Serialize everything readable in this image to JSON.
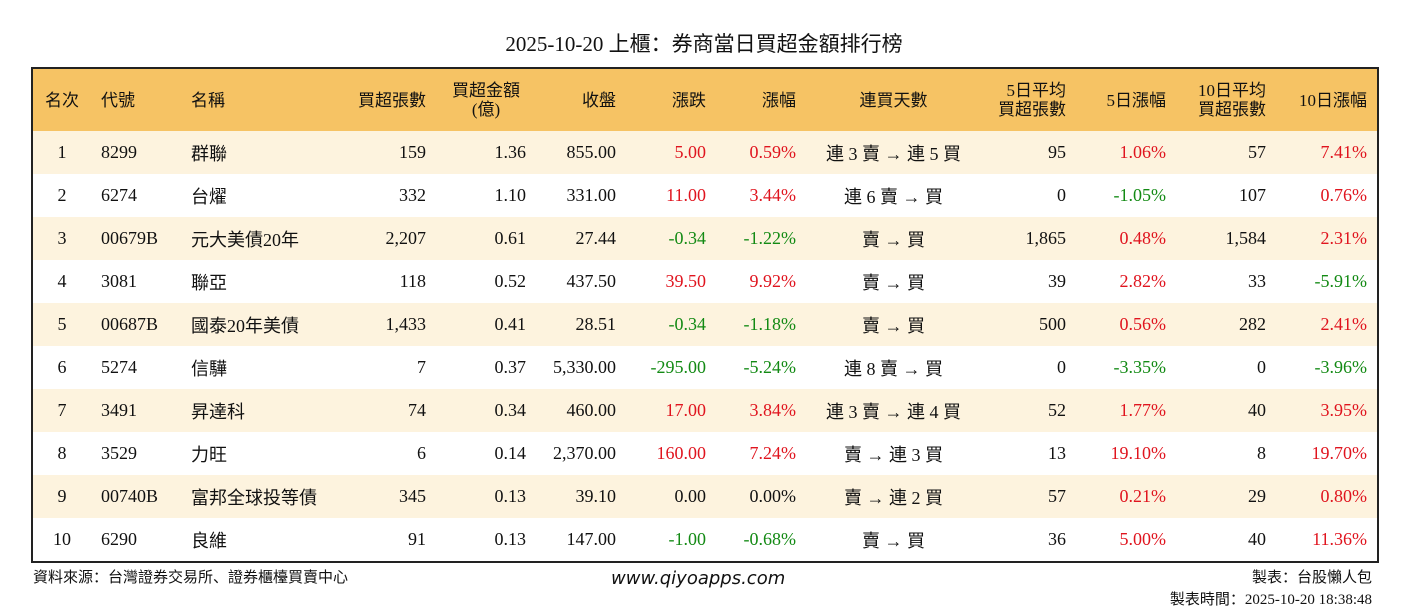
{
  "title": "2025-10-20 上櫃：券商當日買超金額排行榜",
  "table": {
    "headers": [
      "名次",
      "代號",
      "名稱",
      "買超張數",
      "買超金額\n(億)",
      "收盤",
      "漲跌",
      "漲幅",
      "連買天數",
      "5日平均\n買超張數",
      "5日漲幅",
      "10日平均\n買超張數",
      "10日漲幅"
    ],
    "rows": [
      [
        "1",
        "8299",
        "群聯",
        "159",
        "1.36",
        "855.00",
        "5.00",
        "0.59%",
        "連 3 賣 → 連 5 買",
        "95",
        "1.06%",
        "57",
        "7.41%"
      ],
      [
        "2",
        "6274",
        "台燿",
        "332",
        "1.10",
        "331.00",
        "11.00",
        "3.44%",
        "連 6 賣 → 買",
        "0",
        "-1.05%",
        "107",
        "0.76%"
      ],
      [
        "3",
        "00679B",
        "元大美債20年",
        "2,207",
        "0.61",
        "27.44",
        "-0.34",
        "-1.22%",
        "賣 → 買",
        "1,865",
        "0.48%",
        "1,584",
        "2.31%"
      ],
      [
        "4",
        "3081",
        "聯亞",
        "118",
        "0.52",
        "437.50",
        "39.50",
        "9.92%",
        "賣 → 買",
        "39",
        "2.82%",
        "33",
        "-5.91%"
      ],
      [
        "5",
        "00687B",
        "國泰20年美債",
        "1,433",
        "0.41",
        "28.51",
        "-0.34",
        "-1.18%",
        "賣 → 買",
        "500",
        "0.56%",
        "282",
        "2.41%"
      ],
      [
        "6",
        "5274",
        "信驊",
        "7",
        "0.37",
        "5,330.00",
        "-295.00",
        "-5.24%",
        "連 8 賣 → 買",
        "0",
        "-3.35%",
        "0",
        "-3.96%"
      ],
      [
        "7",
        "3491",
        "昇達科",
        "74",
        "0.34",
        "460.00",
        "17.00",
        "3.84%",
        "連 3 賣 → 連 4 買",
        "52",
        "1.77%",
        "40",
        "3.95%"
      ],
      [
        "8",
        "3529",
        "力旺",
        "6",
        "0.14",
        "2,370.00",
        "160.00",
        "7.24%",
        "賣 → 連 3 買",
        "13",
        "19.10%",
        "8",
        "19.70%"
      ],
      [
        "9",
        "00740B",
        "富邦全球投等債",
        "345",
        "0.13",
        "39.10",
        "0.00",
        "0.00%",
        "賣 → 連 2 買",
        "57",
        "0.21%",
        "29",
        "0.80%"
      ],
      [
        "10",
        "6290",
        "良維",
        "91",
        "0.13",
        "147.00",
        "-1.00",
        "-0.68%",
        "賣 → 買",
        "36",
        "5.00%",
        "40",
        "11.36%"
      ]
    ]
  },
  "footer": {
    "source": "資料來源：台灣證券交易所、證券櫃檯買賣中心",
    "site": "www.qiyoapps.com",
    "author": "製表：台股懶人包",
    "time": "製表時間：2025-10-20 18:38:48"
  }
}
